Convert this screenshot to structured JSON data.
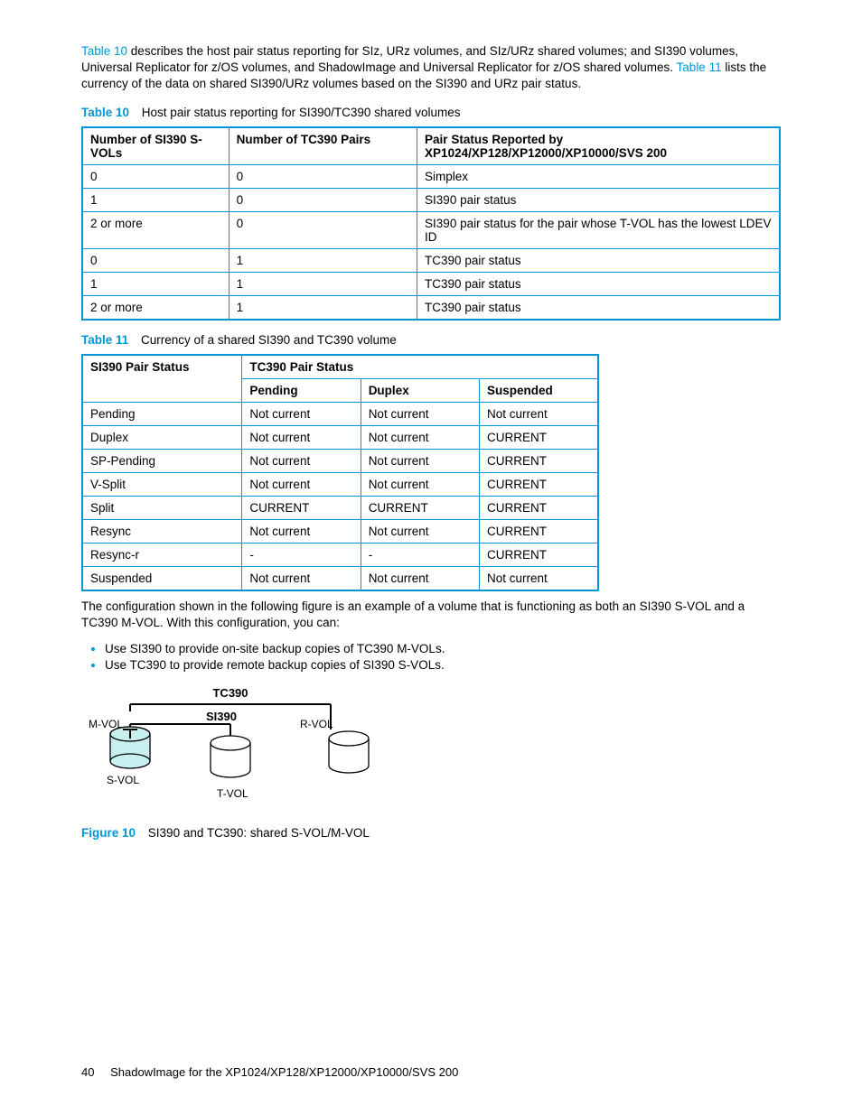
{
  "intro": {
    "link1": "Table 10",
    "text1a": " describes the host pair status reporting for SIz, URz volumes, and SIz/URz shared volumes; and SI390 volumes, Universal Replicator for z/OS volumes, and ShadowImage and Universal Replicator for z/OS shared volumes. ",
    "link2": "Table 11",
    "text1b": " lists the currency of the data on shared SI390/URz volumes based on the SI390 and URz pair status."
  },
  "table10": {
    "caption_label": "Table 10",
    "caption_text": "Host pair status reporting for SI390/TC390 shared volumes",
    "headers": {
      "h1": "Number of SI390 S-VOLs",
      "h2": "Number of TC390 Pairs",
      "h3": "Pair Status Reported by XP1024/XP128/XP12000/XP10000/SVS 200"
    },
    "rows": [
      {
        "c1": "0",
        "c2": "0",
        "c3": "Simplex"
      },
      {
        "c1": "1",
        "c2": "0",
        "c3": "SI390 pair status"
      },
      {
        "c1": "2 or more",
        "c2": "0",
        "c3": "SI390 pair status for the pair whose T-VOL has the lowest LDEV ID"
      },
      {
        "c1": "0",
        "c2": "1",
        "c3": "TC390 pair status"
      },
      {
        "c1": "1",
        "c2": "1",
        "c3": "TC390 pair status"
      },
      {
        "c1": "2 or more",
        "c2": "1",
        "c3": "TC390 pair status"
      }
    ],
    "col_widths": [
      "21%",
      "27%",
      "52%"
    ]
  },
  "table11": {
    "caption_label": "Table 11",
    "caption_text": "Currency of a shared SI390 and TC390 volume",
    "h_left": "SI390 Pair Status",
    "h_right": "TC390 Pair Status",
    "sub": {
      "s1": "Pending",
      "s2": "Duplex",
      "s3": "Suspended"
    },
    "rows": [
      {
        "c1": "Pending",
        "c2": "Not current",
        "c3": "Not current",
        "c4": "Not current"
      },
      {
        "c1": "Duplex",
        "c2": "Not current",
        "c3": "Not current",
        "c4": "CURRENT"
      },
      {
        "c1": "SP-Pending",
        "c2": "Not current",
        "c3": "Not current",
        "c4": "CURRENT"
      },
      {
        "c1": "V-Split",
        "c2": "Not current",
        "c3": "Not current",
        "c4": "CURRENT"
      },
      {
        "c1": "Split",
        "c2": "CURRENT",
        "c3": "CURRENT",
        "c4": "CURRENT"
      },
      {
        "c1": "Resync",
        "c2": "Not current",
        "c3": "Not current",
        "c4": "CURRENT"
      },
      {
        "c1": "Resync-r",
        "c2": "-",
        "c3": "-",
        "c4": "CURRENT"
      },
      {
        "c1": "Suspended",
        "c2": "Not current",
        "c3": "Not current",
        "c4": "Not current"
      }
    ],
    "col_widths": [
      "31%",
      "23%",
      "23%",
      "23%"
    ]
  },
  "after_tables": {
    "para": "The configuration shown in the following figure is an example of a volume that is functioning as both an SI390 S-VOL and a TC390 M-VOL. With this configuration, you can:",
    "bullet1": "Use SI390 to provide on-site backup copies of TC390 M-VOLs.",
    "bullet2": "Use TC390 to provide remote backup copies of SI390 S-VOLs."
  },
  "figure": {
    "caption_label": "Figure 10",
    "caption_text": "SI390 and TC390: shared S-VOL/M-VOL",
    "labels": {
      "tc390": "TC390",
      "si390": "SI390",
      "mvol": "M-VOL",
      "svol": "S-VOL",
      "tvol": "T-VOL",
      "rvol": "R-VOL"
    },
    "colors": {
      "cyl_fill": "#c8f0f0",
      "cyl_plain": "#ffffff",
      "stroke": "#000000"
    }
  },
  "footer": {
    "page_num": "40",
    "title": "ShadowImage for the XP1024/XP128/XP12000/XP10000/SVS 200"
  }
}
